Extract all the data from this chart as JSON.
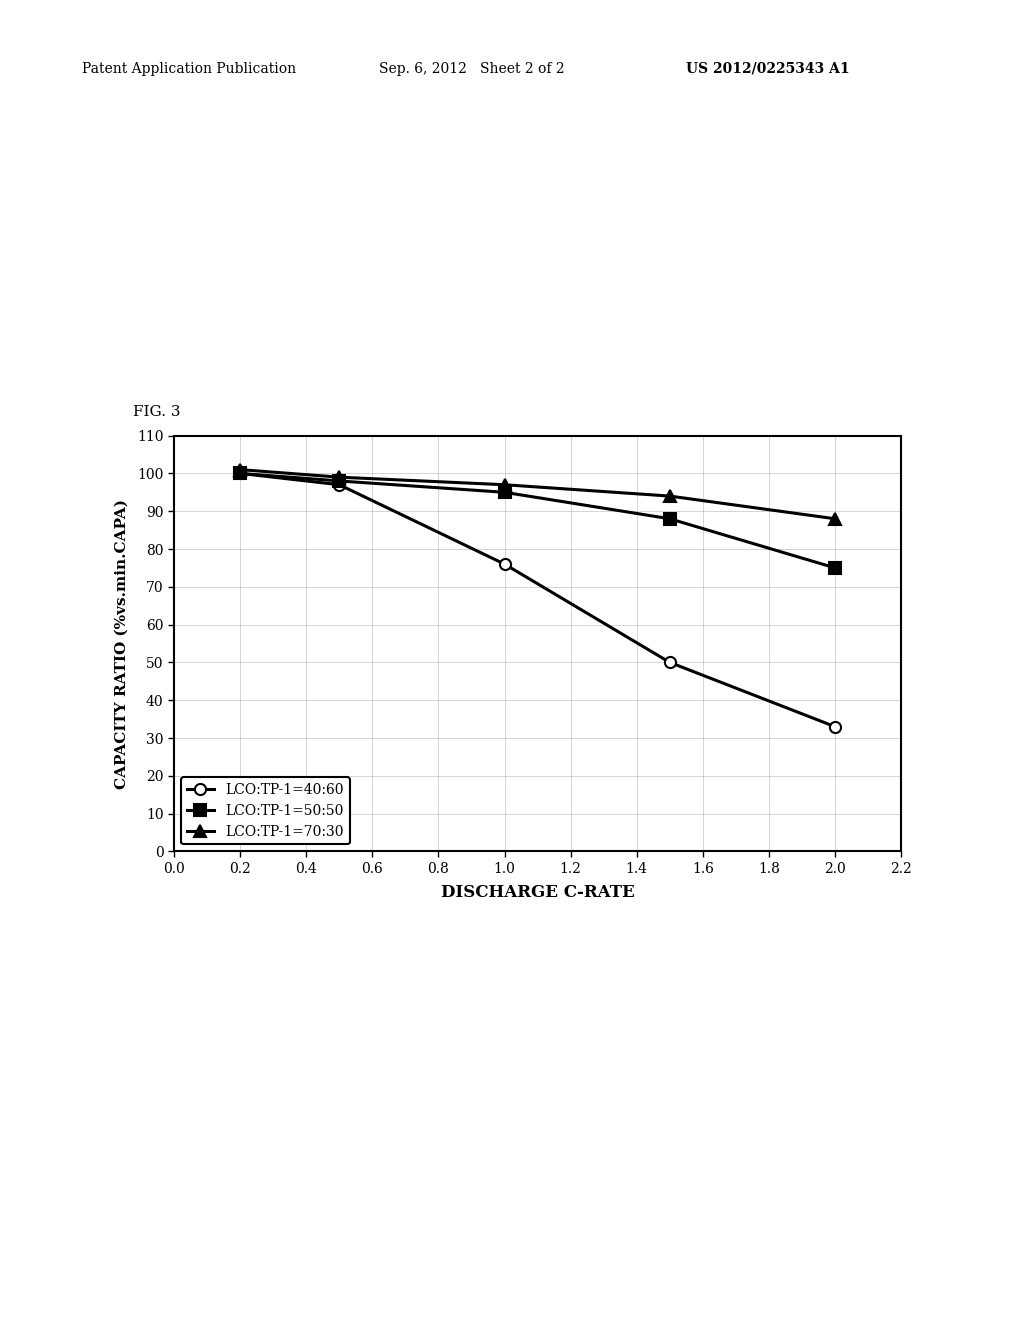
{
  "header_left": "Patent Application Publication",
  "header_mid": "Sep. 6, 2012   Sheet 2 of 2",
  "header_right": "US 2012/0225343 A1",
  "fig_label": "FIG. 3",
  "series": [
    {
      "label": "LCO:TP-1=40:60",
      "x": [
        0.2,
        0.5,
        1.0,
        1.5,
        2.0
      ],
      "y": [
        100,
        97,
        76,
        50,
        33
      ],
      "marker": "o",
      "color": "#000000",
      "linewidth": 2.2,
      "markerfacecolor": "white"
    },
    {
      "label": "LCO:TP-1=50:50",
      "x": [
        0.2,
        0.5,
        1.0,
        1.5,
        2.0
      ],
      "y": [
        100,
        98,
        95,
        88,
        75
      ],
      "marker": "s",
      "color": "#000000",
      "linewidth": 2.2,
      "markerfacecolor": "#000000"
    },
    {
      "label": "LCO:TP-1=70:30",
      "x": [
        0.2,
        0.5,
        1.0,
        1.5,
        2.0
      ],
      "y": [
        101,
        99,
        97,
        94,
        88
      ],
      "marker": "^",
      "color": "#000000",
      "linewidth": 2.2,
      "markerfacecolor": "#000000"
    }
  ],
  "xlabel": "DISCHARGE C-RATE",
  "ylabel": "CAPACITY RATIO (%vs.min.CAPA)",
  "xlim": [
    0.0,
    2.2
  ],
  "ylim": [
    0,
    110
  ],
  "xticks": [
    0.0,
    0.2,
    0.4,
    0.6,
    0.8,
    1.0,
    1.2,
    1.4,
    1.6,
    1.8,
    2.0,
    2.2
  ],
  "yticks": [
    0,
    10,
    20,
    30,
    40,
    50,
    60,
    70,
    80,
    90,
    100,
    110
  ],
  "background_color": "#ffffff",
  "plot_bg_color": "#ffffff",
  "grid_color": "#aaaaaa",
  "legend_loc": "lower left",
  "marker_size": 8
}
